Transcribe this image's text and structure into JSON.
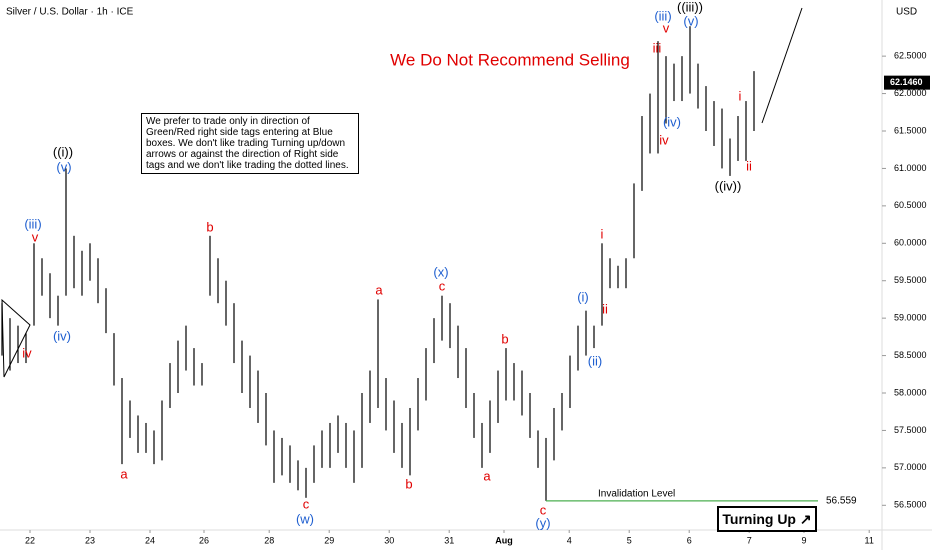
{
  "chart_data": {
    "type": "range_bar",
    "title": "Silver / U.S. Dollar · 1h · ICE",
    "currency": "USD",
    "headline": "We Do Not Recommend Selling",
    "note": "We prefer to trade only in direction of Green/Red right side tags entering at Blue boxes. We don't like trading Turning up/down arrows or against the direction of Right side tags and we don't like trading the dotted lines.",
    "badge": "Turning Up ↗",
    "invalidation": {
      "label": "Invalidation Level",
      "value": 56.559,
      "color": "#4caf50"
    },
    "last_price": {
      "value": 62.146,
      "label": "62.1460"
    },
    "x": [
      0,
      1,
      2,
      3,
      4,
      5,
      6,
      7,
      8,
      9,
      10,
      11,
      12,
      13,
      14,
      15,
      16,
      17,
      18,
      19,
      20,
      21,
      22,
      23,
      24,
      25,
      26,
      27,
      28,
      29,
      30,
      31,
      32,
      33,
      34,
      35,
      36,
      37,
      38,
      39,
      40,
      41,
      42,
      43,
      44,
      45,
      46,
      47,
      48,
      49,
      50,
      51,
      52,
      53,
      54,
      55,
      56,
      57,
      58,
      59,
      60,
      61,
      62,
      63,
      64,
      65,
      66,
      67,
      68,
      69,
      70,
      71,
      72,
      73,
      74,
      75,
      76,
      77,
      78,
      79,
      80,
      81,
      82,
      83,
      84,
      85,
      86,
      87,
      88,
      89,
      90,
      91,
      92,
      93,
      94
    ],
    "series": [
      {
        "color": "#000000",
        "high": [
          59.2,
          59.0,
          58.9,
          58.8,
          60.0,
          59.8,
          59.6,
          59.3,
          61.0,
          60.1,
          59.9,
          60.0,
          59.8,
          59.4,
          58.8,
          58.2,
          57.9,
          57.7,
          57.6,
          57.5,
          57.9,
          58.4,
          58.7,
          58.9,
          58.6,
          58.4,
          60.1,
          59.8,
          59.5,
          59.2,
          58.7,
          58.5,
          58.3,
          58.0,
          57.5,
          57.4,
          57.3,
          57.1,
          57.0,
          57.3,
          57.5,
          57.6,
          57.7,
          57.6,
          57.5,
          58.0,
          58.3,
          59.25,
          58.2,
          57.9,
          57.6,
          57.8,
          58.2,
          58.6,
          59.0,
          59.3,
          59.2,
          58.9,
          58.6,
          58.0,
          57.6,
          57.9,
          58.3,
          58.6,
          58.4,
          58.3,
          58.0,
          57.5,
          57.4,
          57.8,
          58.0,
          58.5,
          58.9,
          59.1,
          58.9,
          60.0,
          59.8,
          59.7,
          59.8,
          60.8,
          61.7,
          62.0,
          62.7,
          62.5,
          62.4,
          62.5,
          62.9,
          62.4,
          62.1,
          61.9,
          61.8,
          61.4,
          61.7,
          61.9,
          62.3
        ],
        "low": [
          58.5,
          58.3,
          58.4,
          58.4,
          58.9,
          59.3,
          59.0,
          58.9,
          59.3,
          59.4,
          59.3,
          59.5,
          59.2,
          58.8,
          58.1,
          57.05,
          57.4,
          57.2,
          57.2,
          57.05,
          57.1,
          57.8,
          58.0,
          58.3,
          58.1,
          58.1,
          59.3,
          59.2,
          58.9,
          58.4,
          58.0,
          57.8,
          57.6,
          57.3,
          56.8,
          56.9,
          56.8,
          56.7,
          56.6,
          56.8,
          57.0,
          57.0,
          57.2,
          57.0,
          56.8,
          57.0,
          57.6,
          57.8,
          57.5,
          57.2,
          57.0,
          56.9,
          57.5,
          57.9,
          58.4,
          58.7,
          58.6,
          58.2,
          57.8,
          57.4,
          57.0,
          57.2,
          57.6,
          57.9,
          57.9,
          57.7,
          57.4,
          57.0,
          56.56,
          57.1,
          57.5,
          57.8,
          58.3,
          58.5,
          58.6,
          58.9,
          59.4,
          59.4,
          59.4,
          59.8,
          60.7,
          61.2,
          61.2,
          61.6,
          61.9,
          61.9,
          62.0,
          61.8,
          61.5,
          61.3,
          61.0,
          60.9,
          61.1,
          61.1,
          61.5
        ]
      }
    ],
    "xlim": [
      0,
      110
    ],
    "xticks": [
      {
        "value": 3.5,
        "label": "22"
      },
      {
        "value": 11,
        "label": "23"
      },
      {
        "value": 18.5,
        "label": "24"
      },
      {
        "value": 25.25,
        "label": "26"
      },
      {
        "value": 33.4,
        "label": "28"
      },
      {
        "value": 40.9,
        "label": "29"
      },
      {
        "value": 48.4,
        "label": "30"
      },
      {
        "value": 55.9,
        "label": "31"
      },
      {
        "value": 62.75,
        "label": "Aug"
      },
      {
        "value": 70.9,
        "label": "4"
      },
      {
        "value": 78.4,
        "label": "5"
      },
      {
        "value": 85.9,
        "label": "6"
      },
      {
        "value": 93.4,
        "label": "7"
      },
      {
        "value": 100.25,
        "label": "9"
      },
      {
        "value": 108.4,
        "label": "11"
      }
    ],
    "ylim": [
      56.17,
      63.25
    ],
    "yticks": [
      {
        "value": 56.5,
        "label": "56.5000"
      },
      {
        "value": 57,
        "label": "57.0000"
      },
      {
        "value": 57.5,
        "label": "57.5000"
      },
      {
        "value": 58,
        "label": "58.0000"
      },
      {
        "value": 58.5,
        "label": "58.5000"
      },
      {
        "value": 59,
        "label": "59.0000"
      },
      {
        "value": 59.5,
        "label": "59.5000"
      },
      {
        "value": 60,
        "label": "60.0000"
      },
      {
        "value": 60.5,
        "label": "60.5000"
      },
      {
        "value": 61,
        "label": "61.0000"
      },
      {
        "value": 61.5,
        "label": "61.5000"
      },
      {
        "value": 62,
        "label": "62.0000"
      },
      {
        "value": 62.5,
        "label": "62.5000"
      }
    ],
    "wave_labels": [
      {
        "text": "iv",
        "color": "#e00000"
      },
      {
        "text": "(iii)",
        "color": "#1f5fd0"
      },
      {
        "text": "v",
        "color": "#e00000"
      },
      {
        "text": "(iv)",
        "color": "#1f5fd0"
      },
      {
        "text": "((i))",
        "color": "#000000"
      },
      {
        "text": "(v)",
        "color": "#1f5fd0"
      },
      {
        "text": "a",
        "color": "#e00000"
      },
      {
        "text": "b",
        "color": "#e00000"
      },
      {
        "text": "c",
        "color": "#e00000"
      },
      {
        "text": "(w)",
        "color": "#1f5fd0"
      },
      {
        "text": "a",
        "color": "#e00000"
      },
      {
        "text": "b",
        "color": "#e00000"
      },
      {
        "text": "(x)",
        "color": "#1f5fd0"
      },
      {
        "text": "c",
        "color": "#e00000"
      },
      {
        "text": "a",
        "color": "#e00000"
      },
      {
        "text": "b",
        "color": "#e00000"
      },
      {
        "text": "c",
        "color": "#e00000"
      },
      {
        "text": "(y)",
        "color": "#1f5fd0"
      },
      {
        "text": "(i)",
        "color": "#1f5fd0"
      },
      {
        "text": "ii",
        "color": "#e00000"
      },
      {
        "text": "(ii)",
        "color": "#1f5fd0"
      },
      {
        "text": "i",
        "color": "#e00000"
      },
      {
        "text": "iii",
        "color": "#e00000"
      },
      {
        "text": "(iii)",
        "color": "#1f5fd0"
      },
      {
        "text": "v",
        "color": "#e00000"
      },
      {
        "text": "((iii))",
        "color": "#000000"
      },
      {
        "text": "(v)",
        "color": "#1f5fd0"
      },
      {
        "text": "(iv)",
        "color": "#1f5fd0"
      },
      {
        "text": "iv",
        "color": "#e00000"
      },
      {
        "text": "((iv))",
        "color": "#000000"
      },
      {
        "text": "i",
        "color": "#e00000"
      },
      {
        "text": "ii",
        "color": "#e00000"
      }
    ]
  }
}
